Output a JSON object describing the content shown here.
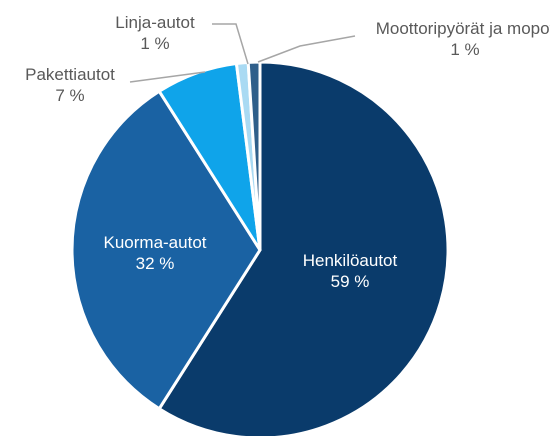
{
  "chart_data": {
    "type": "pie",
    "categories": [
      "Henkilöautot",
      "Kuorma-autot",
      "Pakettiautot",
      "Linja-autot",
      "Moottoripyörät ja mopot"
    ],
    "values": [
      59,
      32,
      7,
      1,
      1
    ],
    "value_labels": [
      "59 %",
      "32 %",
      "7 %",
      "1 %",
      "1 %"
    ],
    "colors": [
      "#0a3b6b",
      "#1a62a3",
      "#0fa4ea",
      "#a9daf3",
      "#2f5f8a"
    ]
  }
}
